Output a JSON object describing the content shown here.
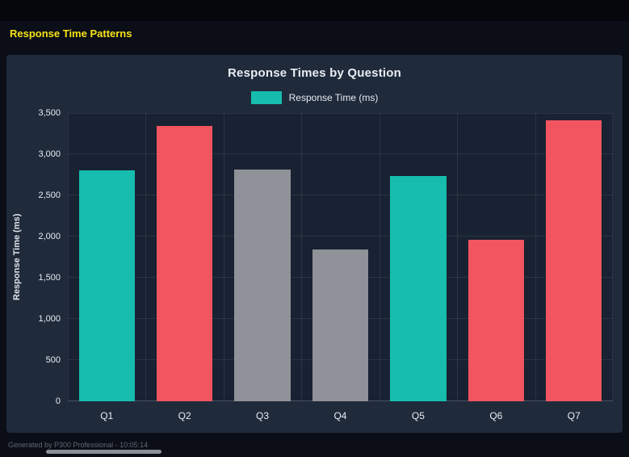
{
  "page": {
    "title": "Response Time Patterns",
    "footer": "Generated by P300 Professional - 10:05:14",
    "colors": {
      "title_yellow": "#f6e316",
      "background": "#0b0e16",
      "panel": "#1f2a3b"
    }
  },
  "chart_data": {
    "type": "bar",
    "title": "Response Times by Question",
    "legend_label": "Response Time (ms)",
    "legend_position": "top",
    "ylabel": "Response Time (ms)",
    "xlabel": "",
    "categories": [
      "Q1",
      "Q2",
      "Q3",
      "Q4",
      "Q5",
      "Q6",
      "Q7"
    ],
    "values": [
      2800,
      3340,
      2810,
      1845,
      2735,
      1960,
      3410
    ],
    "bar_colors": [
      "#16bdae",
      "#f2555f",
      "#8f9298",
      "#8f9298",
      "#16bdae",
      "#f2555f",
      "#f2555f"
    ],
    "ylim": [
      0,
      3500
    ],
    "ytick_step": 500,
    "ytick_labels": [
      "0",
      "500",
      "1,000",
      "1,500",
      "2,000",
      "2,500",
      "3,000",
      "3,500"
    ],
    "grid": true
  }
}
